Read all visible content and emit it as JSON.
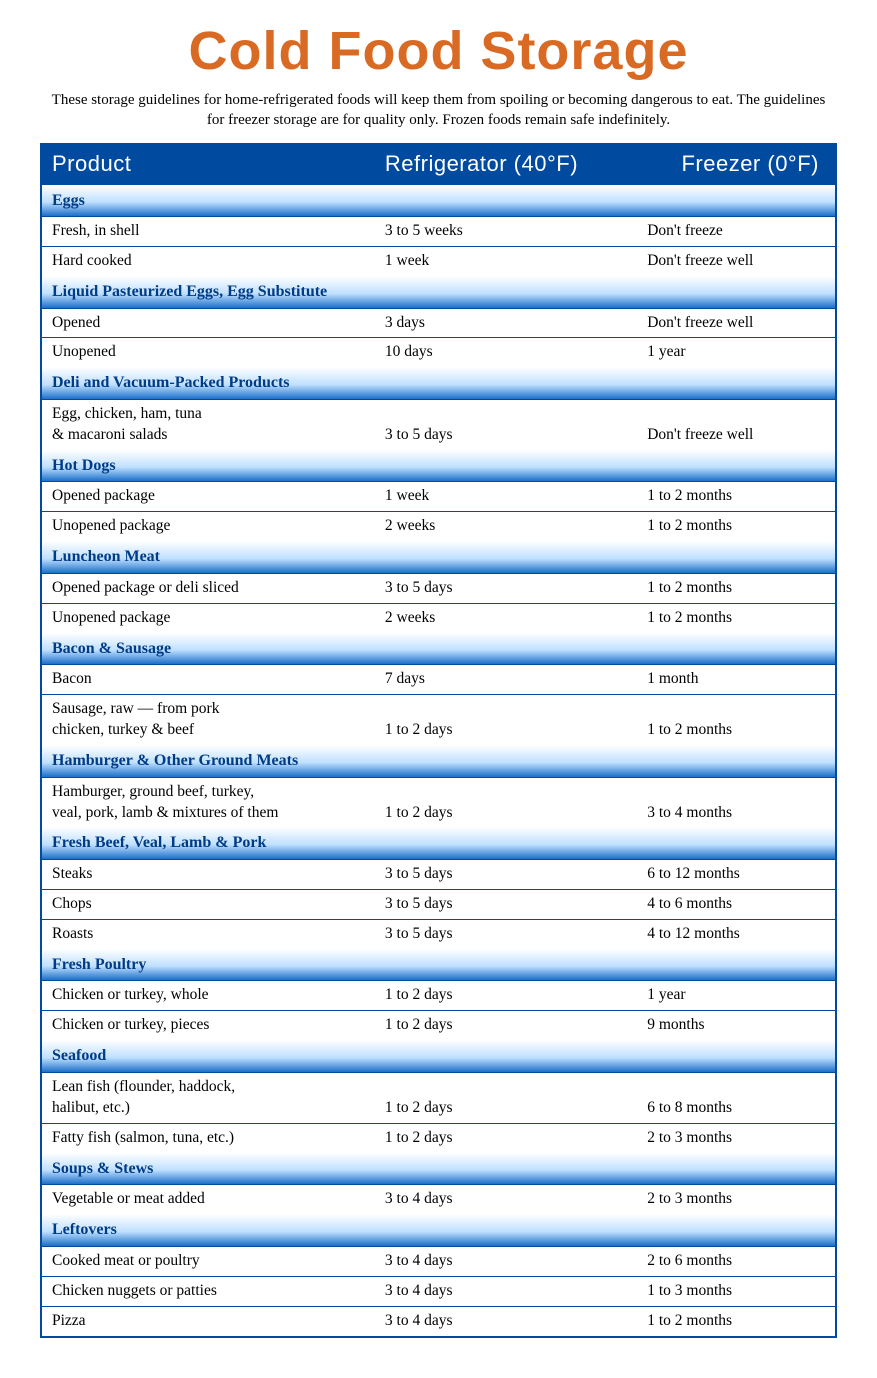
{
  "colors": {
    "title": "#d96a24",
    "header_bg": "#004a9f",
    "border": "#004a9f",
    "section_text": "#003b86",
    "section_grad_top": "#ffffff",
    "section_grad_mid": "#bfe0ff",
    "section_grad_bottom": "#1c6fc9",
    "row_divider": "#004a9f"
  },
  "title": "Cold Food Storage",
  "subtitle": "These storage guidelines for home-refrigerated foods will keep them from spoiling or becoming dangerous to eat. The guidelines for freezer storage are for quality only. Frozen foods remain safe indefinitely.",
  "columns": [
    "Product",
    "Refrigerator (40°F)",
    "Freezer (0°F)"
  ],
  "sections": [
    {
      "name": "Eggs",
      "rows": [
        [
          "Fresh, in shell",
          "3 to 5 weeks",
          "Don't freeze"
        ],
        [
          "Hard cooked",
          "1 week",
          "Don't freeze well"
        ]
      ]
    },
    {
      "name": "Liquid Pasteurized Eggs, Egg Substitute",
      "rows": [
        [
          "Opened",
          "3 days",
          "Don't freeze well"
        ],
        [
          "Unopened",
          "10 days",
          "1 year"
        ]
      ]
    },
    {
      "name": "Deli and Vacuum-Packed Products",
      "rows": [
        [
          "Egg, chicken, ham, tuna\n& macaroni salads",
          "3 to 5 days",
          "Don't freeze well"
        ]
      ]
    },
    {
      "name": "Hot Dogs",
      "rows": [
        [
          "Opened package",
          "1 week",
          "1 to 2 months"
        ],
        [
          "Unopened package",
          "2 weeks",
          "1 to 2 months"
        ]
      ]
    },
    {
      "name": "Luncheon Meat",
      "rows": [
        [
          "Opened package or deli sliced",
          "3 to 5 days",
          "1 to 2 months"
        ],
        [
          "Unopened package",
          "2 weeks",
          "1 to 2 months"
        ]
      ]
    },
    {
      "name": "Bacon & Sausage",
      "rows": [
        [
          "Bacon",
          "7 days",
          "1 month"
        ],
        [
          "Sausage, raw — from pork\nchicken, turkey & beef",
          "1 to 2 days",
          "1 to 2 months"
        ]
      ]
    },
    {
      "name": "Hamburger & Other Ground Meats",
      "rows": [
        [
          "Hamburger, ground beef, turkey,\nveal, pork, lamb & mixtures of them",
          "1 to 2 days",
          "3 to 4 months"
        ]
      ]
    },
    {
      "name": "Fresh Beef, Veal, Lamb & Pork",
      "rows": [
        [
          "Steaks",
          "3 to 5 days",
          "6 to 12 months"
        ],
        [
          "Chops",
          "3 to 5 days",
          "4 to 6 months"
        ],
        [
          "Roasts",
          "3 to 5 days",
          "4 to 12 months"
        ]
      ]
    },
    {
      "name": "Fresh Poultry",
      "rows": [
        [
          "Chicken or turkey, whole",
          "1 to 2 days",
          "1 year"
        ],
        [
          "Chicken or turkey, pieces",
          "1 to 2 days",
          "9 months"
        ]
      ]
    },
    {
      "name": "Seafood",
      "rows": [
        [
          "Lean fish (flounder, haddock,\nhalibut, etc.)",
          "1 to 2 days",
          "6 to 8 months"
        ],
        [
          "Fatty fish (salmon, tuna, etc.)",
          "1 to 2 days",
          "2 to 3 months"
        ]
      ]
    },
    {
      "name": "Soups & Stews",
      "rows": [
        [
          "Vegetable or meat added",
          "3 to 4 days",
          "2 to 3 months"
        ]
      ]
    },
    {
      "name": "Leftovers",
      "rows": [
        [
          "Cooked meat or poultry",
          "3 to 4 days",
          "2 to 6 months"
        ],
        [
          "Chicken nuggets or patties",
          "3 to 4 days",
          "1 to 3 months"
        ],
        [
          "Pizza",
          "3 to 4 days",
          "1 to 2 months"
        ]
      ]
    }
  ]
}
